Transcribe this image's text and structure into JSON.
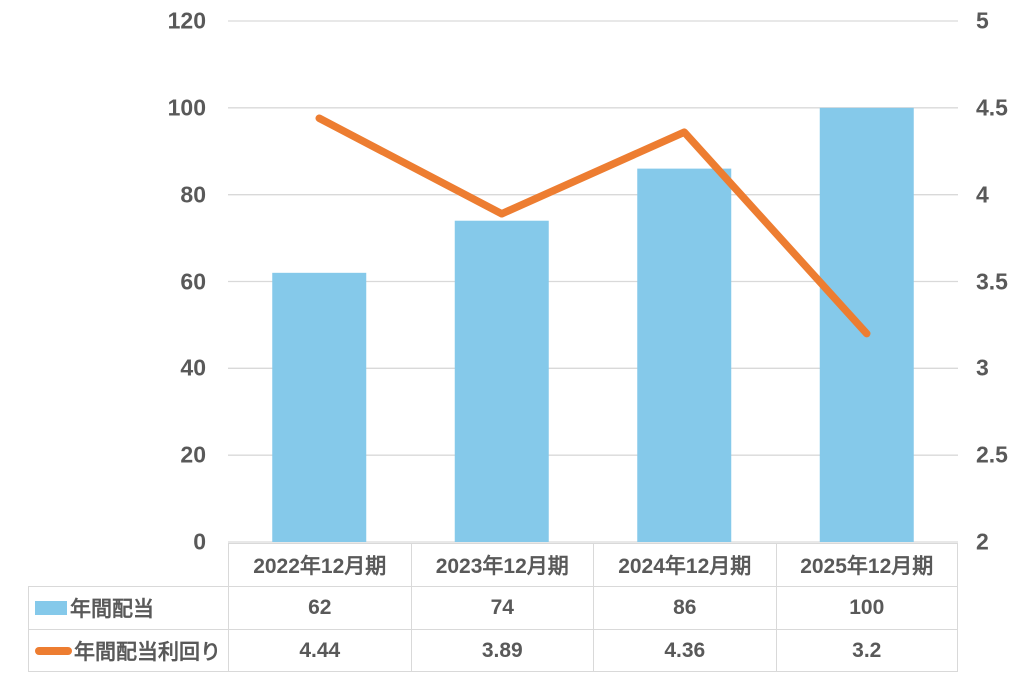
{
  "chart_data": {
    "type": "combo",
    "title": "",
    "categories": [
      "2022年12月期",
      "2023年12月期",
      "2024年12月期",
      "2025年12月期"
    ],
    "series": [
      {
        "name": "年間配当",
        "type": "bar",
        "axis": "left",
        "color": "#85C9EA",
        "values": [
          62,
          74,
          86,
          100
        ]
      },
      {
        "name": "年間配当利回り",
        "type": "line",
        "axis": "right",
        "color": "#ED7D31",
        "values": [
          4.44,
          3.89,
          4.36,
          3.2
        ]
      }
    ],
    "left_axis": {
      "min": 0,
      "max": 120,
      "step": 20,
      "tick_labels": [
        "0",
        "20",
        "40",
        "60",
        "80",
        "100",
        "120"
      ]
    },
    "right_axis": {
      "min": 2,
      "max": 5,
      "step": 0.5,
      "tick_labels": [
        "2",
        "2.5",
        "3",
        "3.5",
        "4",
        "4.5",
        "5"
      ]
    },
    "grid": true,
    "legend_position": "table-left",
    "colors": {
      "bar": "#85C9EA",
      "line": "#ED7D31",
      "grid": "#D9D9D9",
      "table_border": "#D9D9D9",
      "text": "#595959",
      "background": "#FFFFFF"
    }
  }
}
